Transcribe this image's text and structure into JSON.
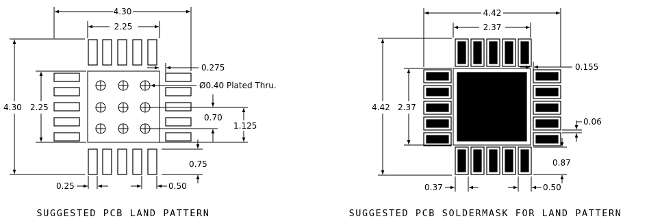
{
  "left_figure": {
    "caption": "SUGGESTED PCB LAND PATTERN",
    "dims": {
      "overall_width": "4.30",
      "overall_height": "4.30",
      "inner_width": "2.25",
      "inner_height": "2.25",
      "pad_gap": "0.275",
      "via_note": "Ø0.40 Plated Thru.",
      "via_pitch": "0.70",
      "via_span": "1.125",
      "pad_length": "0.75",
      "pad_width": "0.25",
      "pad_pitch": "0.50"
    }
  },
  "right_figure": {
    "caption": "SUGGESTED PCB SOLDERMASK FOR LAND PATTERN",
    "dims": {
      "overall_width": "4.42",
      "overall_height": "4.42",
      "inner_width": "2.37",
      "inner_height": "2.37",
      "mask_gap": "0.155",
      "mask_spacing": "0.06",
      "mask_length": "0.87",
      "mask_width": "0.37",
      "mask_pitch": "0.50"
    }
  }
}
